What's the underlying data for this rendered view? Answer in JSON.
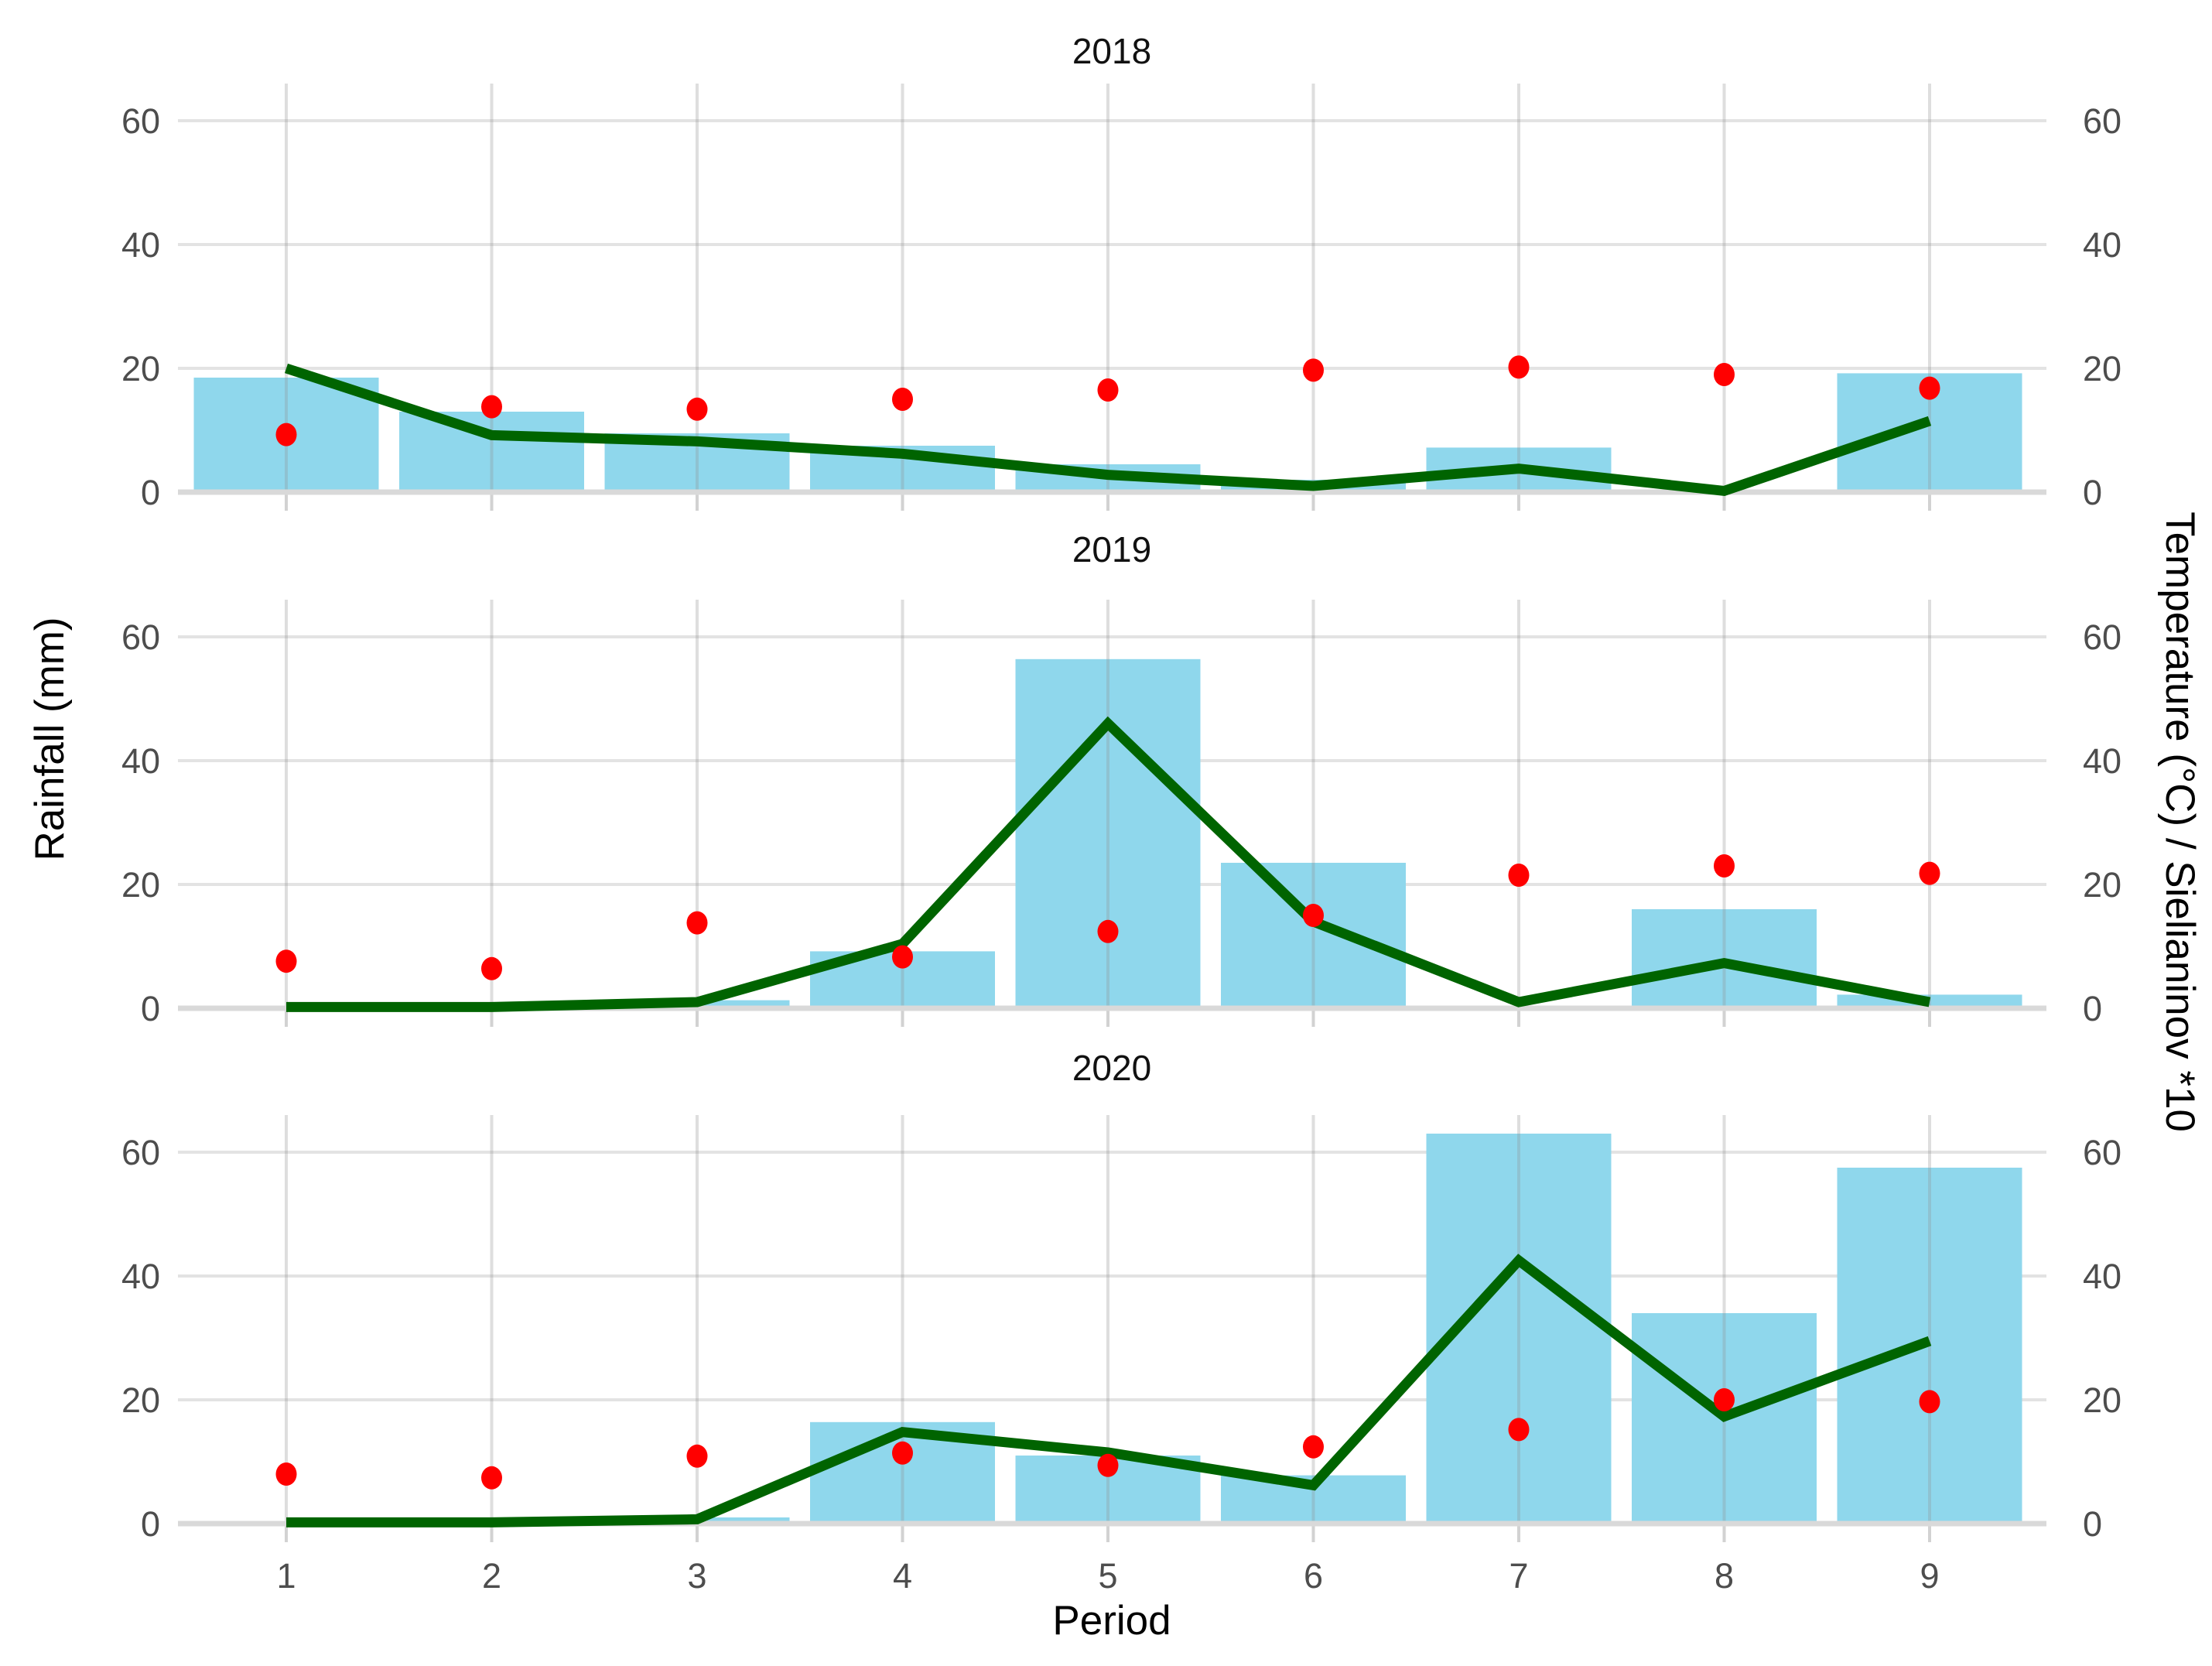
{
  "figure": {
    "x_axis_label": "Period",
    "y_axis_label_left": "Rainfall (mm)",
    "y_axis_label_right": "Temperature (°C) / Sielianinov *10",
    "x_tick_labels": [
      "1",
      "2",
      "3",
      "4",
      "5",
      "6",
      "7",
      "8",
      "9"
    ],
    "y_tick_labels": [
      "0",
      "20",
      "40",
      "60"
    ],
    "legend": "none",
    "grid": "major-on",
    "colors": {
      "bar_fill": "#8FD7EC",
      "line": "#006400",
      "point": "#FF0000",
      "gridline": "#E3E3E3",
      "zero_line": "#D9D9D9",
      "tick_mark": "#D2D2D2",
      "tick_text": "#4D4D4D",
      "title_text": "#111111",
      "background": "#FFFFFF"
    }
  },
  "chart_data": [
    {
      "type": "bar",
      "facet": "2018",
      "x": [
        1,
        2,
        3,
        4,
        5,
        6,
        7,
        8,
        9
      ],
      "ylim": [
        0,
        66
      ],
      "yticks": [
        0,
        20,
        40,
        60
      ],
      "series": [
        {
          "name": "Rainfall (mm)",
          "geom": "bar",
          "values": [
            18.5,
            13.0,
            9.5,
            7.5,
            4.5,
            2.0,
            7.2,
            0,
            19.2
          ]
        },
        {
          "name": "Temperature (°C)",
          "geom": "point",
          "values": [
            9.3,
            13.8,
            13.4,
            15.0,
            16.5,
            19.7,
            20.2,
            19.0,
            16.8
          ]
        },
        {
          "name": "Sielianinov *10",
          "geom": "line",
          "values": [
            20.0,
            9.2,
            8.2,
            6.2,
            2.8,
            1.0,
            3.8,
            0.2,
            11.5
          ]
        }
      ]
    },
    {
      "type": "bar",
      "facet": "2019",
      "x": [
        1,
        2,
        3,
        4,
        5,
        6,
        7,
        8,
        9
      ],
      "ylim": [
        0,
        66
      ],
      "yticks": [
        0,
        20,
        40,
        60
      ],
      "series": [
        {
          "name": "Rainfall (mm)",
          "geom": "bar",
          "values": [
            0,
            0,
            1.3,
            9.2,
            56.4,
            23.5,
            0,
            16.0,
            2.2
          ]
        },
        {
          "name": "Temperature (°C)",
          "geom": "point",
          "values": [
            7.6,
            6.4,
            13.8,
            8.3,
            12.4,
            15.0,
            21.5,
            23.0,
            21.8
          ]
        },
        {
          "name": "Sielianinov *10",
          "geom": "line",
          "values": [
            0.2,
            0.2,
            1.0,
            10.4,
            46.0,
            14.0,
            1.0,
            7.3,
            1.0
          ]
        }
      ]
    },
    {
      "type": "bar",
      "facet": "2020",
      "x": [
        1,
        2,
        3,
        4,
        5,
        6,
        7,
        8,
        9
      ],
      "ylim": [
        0,
        66
      ],
      "yticks": [
        0,
        20,
        40,
        60
      ],
      "series": [
        {
          "name": "Rainfall (mm)",
          "geom": "bar",
          "values": [
            0,
            0,
            1.0,
            16.4,
            11.0,
            7.8,
            63.0,
            34.0,
            57.5
          ]
        },
        {
          "name": "Temperature (°C)",
          "geom": "point",
          "values": [
            8.0,
            7.4,
            10.9,
            11.4,
            9.4,
            12.4,
            15.2,
            20.0,
            19.7
          ]
        },
        {
          "name": "Sielianinov *10",
          "geom": "line",
          "values": [
            0.2,
            0.2,
            0.7,
            14.8,
            11.5,
            6.2,
            42.5,
            17.3,
            29.5
          ]
        }
      ]
    }
  ]
}
